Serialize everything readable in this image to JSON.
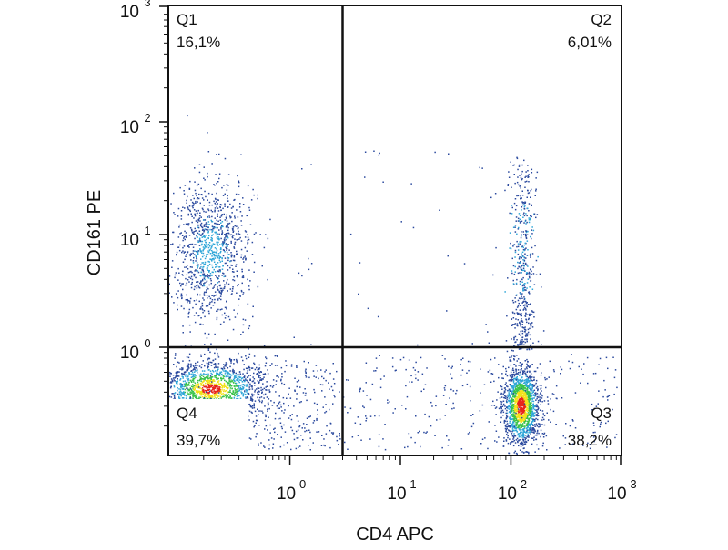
{
  "chart_data": {
    "type": "scatter",
    "plot_kind": "flow cytometry density dot plot",
    "xlabel": "CD4 APC",
    "ylabel": "CD161 PE",
    "x_scale": "log",
    "y_scale": "log",
    "x_ticks": [
      {
        "base": "10",
        "exp": "0"
      },
      {
        "base": "10",
        "exp": "1"
      },
      {
        "base": "10",
        "exp": "2"
      },
      {
        "base": "10",
        "exp": "3"
      }
    ],
    "y_ticks": [
      {
        "base": "10",
        "exp": "0"
      },
      {
        "base": "10",
        "exp": "1"
      },
      {
        "base": "10",
        "exp": "2"
      },
      {
        "base": "10",
        "exp": "3"
      }
    ],
    "gate": {
      "x": 3,
      "y": 1
    },
    "quadrants": [
      {
        "name": "Q1",
        "percent": "16,1%",
        "value": 16.1,
        "position": "top-left"
      },
      {
        "name": "Q2",
        "percent": "6,01%",
        "value": 6.01,
        "position": "top-right"
      },
      {
        "name": "Q3",
        "percent": "38,2%",
        "value": 38.2,
        "position": "bottom-right"
      },
      {
        "name": "Q4",
        "percent": "39,7%",
        "value": 39.7,
        "position": "bottom-left"
      }
    ],
    "populations": [
      {
        "id": "cd4-neg-cd161-pos",
        "center": [
          0.45,
          7
        ],
        "count": 1100
      },
      {
        "id": "cd4-neg-cd161-neg",
        "center": [
          0.35,
          0.45
        ],
        "count": 1500
      },
      {
        "id": "cd4-pos-cd161-neg",
        "center": [
          140,
          0.35
        ],
        "count": 1600
      },
      {
        "id": "cd4-pos-cd161-pos",
        "center": [
          140,
          6
        ],
        "count": 500
      },
      {
        "id": "scattered-events",
        "count": 450
      }
    ],
    "colors": {
      "low_density": "#2b4a9e",
      "mid_low": "#2fa6d8",
      "mid": "#39c24a",
      "mid_high": "#f2e21a",
      "high_density": "#e8241b",
      "gate_lines": "#111111",
      "frame": "#111111"
    }
  }
}
